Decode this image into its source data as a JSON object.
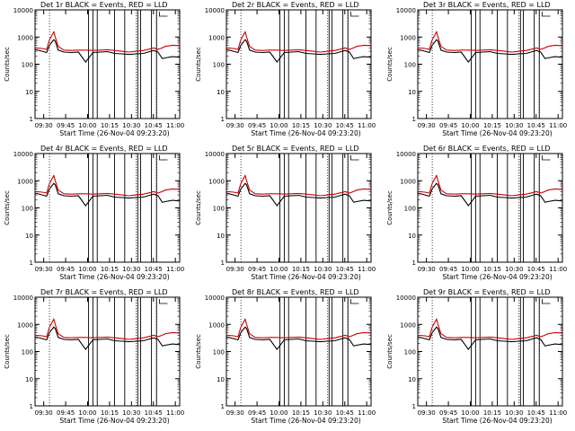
{
  "figure": {
    "background": "#ffffff",
    "axis_color": "#000000",
    "events_color": "#000000",
    "lld_color": "#cc0000"
  },
  "chart_data": [
    {
      "type": "line",
      "title": "Det 1r BLACK = Events, RED = LLD",
      "xlabel": "Start Time (26-Nov-04 09:23:20)",
      "ylabel": "Counts/sec",
      "yscale": "log",
      "ylim": [
        1,
        10000
      ],
      "grid": false,
      "x_ticks": [
        "09:30",
        "09:45",
        "10:00",
        "10:15",
        "10:30",
        "10:45",
        "11:00"
      ],
      "y_ticks": [
        "1",
        "10",
        "100",
        "1000",
        "10000"
      ],
      "x": [
        0,
        5,
        8,
        10,
        13,
        14,
        16,
        20,
        25,
        30,
        35,
        40,
        45,
        50,
        55,
        60,
        65,
        70,
        75,
        80,
        82,
        85,
        88,
        90,
        95,
        100
      ],
      "series": [
        {
          "name": "Events",
          "values": [
            350,
            300,
            270,
            500,
            800,
            700,
            330,
            280,
            270,
            280,
            120,
            270,
            280,
            290,
            250,
            240,
            230,
            240,
            250,
            300,
            320,
            280,
            160,
            170,
            190,
            180
          ]
        },
        {
          "name": "LLD",
          "values": [
            400,
            380,
            350,
            800,
            1550,
            1000,
            450,
            330,
            320,
            330,
            330,
            320,
            330,
            340,
            320,
            300,
            280,
            300,
            320,
            370,
            400,
            350,
            400,
            450,
            500,
            480
          ]
        }
      ]
    },
    {
      "type": "line",
      "title": "Det 2r BLACK = Events, RED = LLD",
      "xlabel": "Start Time (26-Nov-04 09:23:20)",
      "ylabel": "Counts/sec",
      "yscale": "log",
      "ylim": [
        1,
        10000
      ],
      "grid": false,
      "x_ticks": [
        "09:30",
        "09:45",
        "10:00",
        "10:15",
        "10:30",
        "10:45",
        "11:00"
      ],
      "y_ticks": [
        "1",
        "10",
        "100",
        "1000",
        "10000"
      ],
      "x": [
        0,
        5,
        8,
        10,
        13,
        14,
        16,
        20,
        25,
        30,
        35,
        40,
        45,
        50,
        55,
        60,
        65,
        70,
        75,
        80,
        82,
        85,
        88,
        90,
        95,
        100
      ],
      "series": [
        {
          "name": "Events",
          "values": [
            350,
            300,
            270,
            500,
            800,
            700,
            330,
            280,
            270,
            280,
            120,
            270,
            280,
            290,
            250,
            240,
            230,
            240,
            250,
            300,
            320,
            280,
            160,
            170,
            190,
            180
          ]
        },
        {
          "name": "LLD",
          "values": [
            400,
            380,
            350,
            800,
            1550,
            1000,
            450,
            330,
            320,
            330,
            330,
            320,
            330,
            340,
            320,
            300,
            280,
            300,
            320,
            370,
            400,
            350,
            400,
            450,
            500,
            480
          ]
        }
      ]
    },
    {
      "type": "line",
      "title": "Det 3r BLACK = Events, RED = LLD",
      "xlabel": "Start Time (26-Nov-04 09:23:20)",
      "ylabel": "Counts/sec",
      "yscale": "log",
      "ylim": [
        1,
        10000
      ],
      "grid": false,
      "x_ticks": [
        "09:30",
        "09:45",
        "10:00",
        "10:15",
        "10:30",
        "10:45",
        "11:00"
      ],
      "y_ticks": [
        "1",
        "10",
        "100",
        "1000",
        "10000"
      ],
      "x": [
        0,
        5,
        8,
        10,
        13,
        14,
        16,
        20,
        25,
        30,
        35,
        40,
        45,
        50,
        55,
        60,
        65,
        70,
        75,
        80,
        82,
        85,
        88,
        90,
        95,
        100
      ],
      "series": [
        {
          "name": "Events",
          "values": [
            350,
            300,
            270,
            500,
            800,
            700,
            330,
            280,
            270,
            280,
            120,
            270,
            280,
            290,
            250,
            240,
            230,
            240,
            250,
            300,
            320,
            280,
            160,
            170,
            190,
            180
          ]
        },
        {
          "name": "LLD",
          "values": [
            400,
            380,
            350,
            800,
            1550,
            1000,
            450,
            330,
            320,
            330,
            330,
            320,
            330,
            340,
            320,
            300,
            280,
            300,
            320,
            370,
            400,
            350,
            400,
            450,
            500,
            480
          ]
        }
      ]
    },
    {
      "type": "line",
      "title": "Det 4r BLACK = Events, RED = LLD",
      "xlabel": "Start Time (26-Nov-04 09:23:20)",
      "ylabel": "Counts/sec",
      "yscale": "log",
      "ylim": [
        1,
        10000
      ],
      "grid": false,
      "x_ticks": [
        "09:30",
        "09:45",
        "10:00",
        "10:15",
        "10:30",
        "10:45",
        "11:00"
      ],
      "y_ticks": [
        "1",
        "10",
        "100",
        "1000",
        "10000"
      ],
      "x": [
        0,
        5,
        8,
        10,
        13,
        14,
        16,
        20,
        25,
        30,
        35,
        40,
        45,
        50,
        55,
        60,
        65,
        70,
        75,
        80,
        82,
        85,
        88,
        90,
        95,
        100
      ],
      "series": [
        {
          "name": "Events",
          "values": [
            350,
            300,
            270,
            500,
            800,
            700,
            330,
            280,
            270,
            280,
            120,
            270,
            280,
            290,
            250,
            240,
            230,
            240,
            250,
            300,
            320,
            280,
            160,
            170,
            190,
            180
          ]
        },
        {
          "name": "LLD",
          "values": [
            400,
            380,
            350,
            800,
            1550,
            1000,
            450,
            330,
            320,
            330,
            330,
            320,
            330,
            340,
            320,
            300,
            280,
            300,
            320,
            370,
            400,
            350,
            400,
            450,
            500,
            480
          ]
        }
      ]
    },
    {
      "type": "line",
      "title": "Det 5r BLACK = Events, RED = LLD",
      "xlabel": "Start Time (26-Nov-04 09:23:20)",
      "ylabel": "Counts/sec",
      "yscale": "log",
      "ylim": [
        1,
        10000
      ],
      "grid": false,
      "x_ticks": [
        "09:30",
        "09:45",
        "10:00",
        "10:15",
        "10:30",
        "10:45",
        "11:00"
      ],
      "y_ticks": [
        "1",
        "10",
        "100",
        "1000",
        "10000"
      ],
      "x": [
        0,
        5,
        8,
        10,
        13,
        14,
        16,
        20,
        25,
        30,
        35,
        40,
        45,
        50,
        55,
        60,
        65,
        70,
        75,
        80,
        82,
        85,
        88,
        90,
        95,
        100
      ],
      "series": [
        {
          "name": "Events",
          "values": [
            350,
            300,
            270,
            500,
            800,
            700,
            330,
            280,
            270,
            280,
            120,
            270,
            280,
            290,
            250,
            240,
            230,
            240,
            250,
            300,
            320,
            280,
            160,
            170,
            190,
            180
          ]
        },
        {
          "name": "LLD",
          "values": [
            400,
            380,
            350,
            800,
            1550,
            1000,
            450,
            330,
            320,
            330,
            330,
            320,
            330,
            340,
            320,
            300,
            280,
            300,
            320,
            370,
            400,
            350,
            400,
            450,
            500,
            480
          ]
        }
      ]
    },
    {
      "type": "line",
      "title": "Det 6r BLACK = Events, RED = LLD",
      "xlabel": "Start Time (26-Nov-04 09:23:20)",
      "ylabel": "Counts/sec",
      "yscale": "log",
      "ylim": [
        1,
        10000
      ],
      "grid": false,
      "x_ticks": [
        "09:30",
        "09:45",
        "10:00",
        "10:15",
        "10:30",
        "10:45",
        "11:00"
      ],
      "y_ticks": [
        "1",
        "10",
        "100",
        "1000",
        "10000"
      ],
      "x": [
        0,
        5,
        8,
        10,
        13,
        14,
        16,
        20,
        25,
        30,
        35,
        40,
        45,
        50,
        55,
        60,
        65,
        70,
        75,
        80,
        82,
        85,
        88,
        90,
        95,
        100
      ],
      "series": [
        {
          "name": "Events",
          "values": [
            350,
            300,
            270,
            500,
            800,
            700,
            330,
            280,
            270,
            280,
            120,
            270,
            280,
            290,
            250,
            240,
            230,
            240,
            250,
            300,
            320,
            280,
            160,
            170,
            190,
            180
          ]
        },
        {
          "name": "LLD",
          "values": [
            400,
            380,
            350,
            800,
            1550,
            1000,
            450,
            330,
            320,
            330,
            330,
            320,
            330,
            340,
            320,
            300,
            280,
            300,
            320,
            370,
            400,
            350,
            400,
            450,
            500,
            480
          ]
        }
      ]
    },
    {
      "type": "line",
      "title": "Det 7r BLACK = Events, RED = LLD",
      "xlabel": "Start Time (26-Nov-04 09:23:20)",
      "ylabel": "Counts/sec",
      "yscale": "log",
      "ylim": [
        1,
        10000
      ],
      "grid": false,
      "x_ticks": [
        "09:30",
        "09:45",
        "10:00",
        "10:15",
        "10:30",
        "10:45",
        "11:00"
      ],
      "y_ticks": [
        "1",
        "10",
        "100",
        "1000",
        "10000"
      ],
      "x": [
        0,
        5,
        8,
        10,
        13,
        14,
        16,
        20,
        25,
        30,
        35,
        40,
        45,
        50,
        55,
        60,
        65,
        70,
        75,
        80,
        82,
        85,
        88,
        90,
        95,
        100
      ],
      "series": [
        {
          "name": "Events",
          "values": [
            350,
            300,
            270,
            500,
            800,
            700,
            330,
            280,
            270,
            280,
            120,
            270,
            280,
            290,
            250,
            240,
            230,
            240,
            250,
            300,
            320,
            280,
            160,
            170,
            190,
            180
          ]
        },
        {
          "name": "LLD",
          "values": [
            400,
            380,
            350,
            800,
            1550,
            1000,
            450,
            330,
            320,
            330,
            330,
            320,
            330,
            340,
            320,
            300,
            280,
            300,
            320,
            370,
            400,
            350,
            400,
            450,
            500,
            480
          ]
        }
      ]
    },
    {
      "type": "line",
      "title": "Det 8r BLACK = Events, RED = LLD",
      "xlabel": "Start Time (26-Nov-04 09:23:20)",
      "ylabel": "Counts/sec",
      "yscale": "log",
      "ylim": [
        1,
        10000
      ],
      "grid": false,
      "x_ticks": [
        "09:30",
        "09:45",
        "10:00",
        "10:15",
        "10:30",
        "10:45",
        "11:00"
      ],
      "y_ticks": [
        "1",
        "10",
        "100",
        "1000",
        "10000"
      ],
      "x": [
        0,
        5,
        8,
        10,
        13,
        14,
        16,
        20,
        25,
        30,
        35,
        40,
        45,
        50,
        55,
        60,
        65,
        70,
        75,
        80,
        82,
        85,
        88,
        90,
        95,
        100
      ],
      "series": [
        {
          "name": "Events",
          "values": [
            350,
            300,
            270,
            500,
            800,
            700,
            330,
            280,
            270,
            280,
            120,
            270,
            280,
            290,
            250,
            240,
            230,
            240,
            250,
            300,
            320,
            280,
            160,
            170,
            190,
            180
          ]
        },
        {
          "name": "LLD",
          "values": [
            400,
            380,
            350,
            800,
            1550,
            1000,
            450,
            330,
            320,
            330,
            330,
            320,
            330,
            340,
            320,
            300,
            280,
            300,
            320,
            370,
            400,
            350,
            400,
            450,
            500,
            480
          ]
        }
      ]
    },
    {
      "type": "line",
      "title": "Det 9r BLACK = Events, RED = LLD",
      "xlabel": "Start Time (26-Nov-04 09:23:20)",
      "ylabel": "Counts/sec",
      "yscale": "log",
      "ylim": [
        1,
        10000
      ],
      "grid": false,
      "x_ticks": [
        "09:30",
        "09:45",
        "10:00",
        "10:15",
        "10:30",
        "10:45",
        "11:00"
      ],
      "y_ticks": [
        "1",
        "10",
        "100",
        "1000",
        "10000"
      ],
      "x": [
        0,
        5,
        8,
        10,
        13,
        14,
        16,
        20,
        25,
        30,
        35,
        40,
        45,
        50,
        55,
        60,
        65,
        70,
        75,
        80,
        82,
        85,
        88,
        90,
        95,
        100
      ],
      "series": [
        {
          "name": "Events",
          "values": [
            350,
            300,
            270,
            500,
            800,
            700,
            330,
            280,
            270,
            280,
            120,
            270,
            280,
            290,
            250,
            240,
            230,
            240,
            250,
            300,
            320,
            280,
            160,
            170,
            190,
            180
          ]
        },
        {
          "name": "LLD",
          "values": [
            400,
            380,
            350,
            800,
            1550,
            1000,
            450,
            330,
            320,
            330,
            330,
            320,
            330,
            340,
            320,
            300,
            280,
            300,
            320,
            370,
            400,
            350,
            400,
            450,
            500,
            480
          ]
        }
      ]
    }
  ]
}
